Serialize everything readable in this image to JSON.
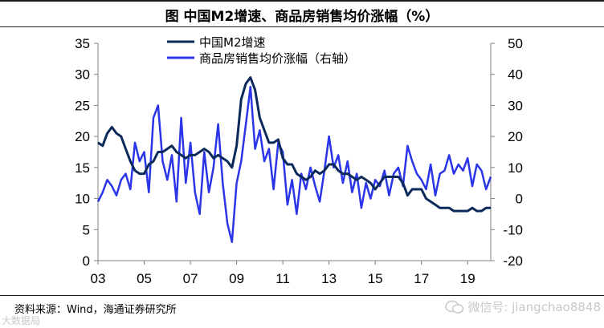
{
  "figure_title": "图  中国M2增速、商品房销售均价涨幅（%）",
  "source_note": "资料来源：Wind，海通证券研究所",
  "watermark_left": "大数据局",
  "watermark_right": "微信号: jiangchao8848",
  "colors": {
    "m2": "#0b2a5b",
    "house": "#2a34e8",
    "axis": "#808080",
    "text": "#000000"
  },
  "chart_data": {
    "type": "line",
    "x_tick_labels": [
      "03",
      "05",
      "07",
      "09",
      "11",
      "13",
      "15",
      "17",
      "19"
    ],
    "x_tick_years": [
      2003,
      2005,
      2007,
      2009,
      2011,
      2013,
      2015,
      2017,
      2019
    ],
    "xlim": [
      2003,
      2020
    ],
    "left_axis": {
      "ticks": [
        0,
        5,
        10,
        15,
        20,
        25,
        30,
        35
      ],
      "ylim": [
        0,
        35
      ]
    },
    "right_axis": {
      "ticks": [
        -20,
        -10,
        0,
        10,
        20,
        30,
        40,
        50
      ],
      "ylim": [
        -20,
        50
      ]
    },
    "legend_position": "top-center",
    "series": [
      {
        "name": "中国M2增速",
        "axis": "left",
        "x": [
          2003.0,
          2003.2,
          2003.4,
          2003.6,
          2003.8,
          2004.0,
          2004.2,
          2004.4,
          2004.6,
          2004.8,
          2005.0,
          2005.2,
          2005.4,
          2005.6,
          2005.8,
          2006.0,
          2006.2,
          2006.4,
          2006.6,
          2006.8,
          2007.0,
          2007.2,
          2007.4,
          2007.6,
          2007.8,
          2008.0,
          2008.2,
          2008.4,
          2008.6,
          2008.8,
          2009.0,
          2009.2,
          2009.4,
          2009.6,
          2009.8,
          2010.0,
          2010.2,
          2010.4,
          2010.6,
          2010.8,
          2011.0,
          2011.2,
          2011.4,
          2011.6,
          2011.8,
          2012.0,
          2012.2,
          2012.4,
          2012.6,
          2012.8,
          2013.0,
          2013.2,
          2013.4,
          2013.6,
          2013.8,
          2014.0,
          2014.2,
          2014.4,
          2014.6,
          2014.8,
          2015.0,
          2015.2,
          2015.4,
          2015.6,
          2015.8,
          2016.0,
          2016.2,
          2016.4,
          2016.6,
          2016.8,
          2017.0,
          2017.2,
          2017.4,
          2017.6,
          2017.8,
          2018.0,
          2018.2,
          2018.4,
          2018.6,
          2018.8,
          2019.0,
          2019.2,
          2019.4,
          2019.6,
          2019.8,
          2020.0
        ],
        "y": [
          19.0,
          18.5,
          20.5,
          21.5,
          20.5,
          20.0,
          18.0,
          16.0,
          14.5,
          14.0,
          14.0,
          15.5,
          16.0,
          17.5,
          17.5,
          18.0,
          18.5,
          17.5,
          17.0,
          16.5,
          17.0,
          17.0,
          17.5,
          18.0,
          17.5,
          16.5,
          17.0,
          16.5,
          16.0,
          15.0,
          18.5,
          26.0,
          28.5,
          29.5,
          27.5,
          23.0,
          21.0,
          19.0,
          19.0,
          19.5,
          16.5,
          15.5,
          15.5,
          14.0,
          13.5,
          13.0,
          13.5,
          14.5,
          14.0,
          14.5,
          15.5,
          15.5,
          14.5,
          14.0,
          14.0,
          13.5,
          13.0,
          13.5,
          13.0,
          12.5,
          11.5,
          12.5,
          13.5,
          13.5,
          13.5,
          13.5,
          12.5,
          10.5,
          11.5,
          11.5,
          11.5,
          10.0,
          9.5,
          9.0,
          8.5,
          8.5,
          8.5,
          8.0,
          8.0,
          8.0,
          8.0,
          8.5,
          8.0,
          8.0,
          8.5,
          8.5
        ]
      },
      {
        "name": "商品房销售均价涨幅（右轴）",
        "axis": "right",
        "x": [
          2003.0,
          2003.2,
          2003.4,
          2003.6,
          2003.8,
          2004.0,
          2004.2,
          2004.4,
          2004.6,
          2004.8,
          2005.0,
          2005.2,
          2005.4,
          2005.6,
          2005.8,
          2006.0,
          2006.2,
          2006.4,
          2006.6,
          2006.8,
          2007.0,
          2007.2,
          2007.4,
          2007.6,
          2007.8,
          2008.0,
          2008.2,
          2008.4,
          2008.6,
          2008.8,
          2009.0,
          2009.2,
          2009.4,
          2009.6,
          2009.8,
          2010.0,
          2010.2,
          2010.4,
          2010.6,
          2010.8,
          2011.0,
          2011.2,
          2011.4,
          2011.6,
          2011.8,
          2012.0,
          2012.2,
          2012.4,
          2012.6,
          2012.8,
          2013.0,
          2013.2,
          2013.4,
          2013.6,
          2013.8,
          2014.0,
          2014.2,
          2014.4,
          2014.6,
          2014.8,
          2015.0,
          2015.2,
          2015.4,
          2015.6,
          2015.8,
          2016.0,
          2016.2,
          2016.4,
          2016.6,
          2016.8,
          2017.0,
          2017.2,
          2017.4,
          2017.6,
          2017.8,
          2018.0,
          2018.2,
          2018.4,
          2018.6,
          2018.8,
          2019.0,
          2019.2,
          2019.4,
          2019.6,
          2019.8,
          2020.0
        ],
        "y": [
          -1.0,
          2.0,
          6.0,
          4.0,
          1.0,
          6.0,
          8.0,
          3.0,
          18.0,
          12.0,
          15.0,
          2.0,
          26.0,
          30.0,
          12.0,
          6.0,
          14.0,
          -1.0,
          26.0,
          5.0,
          18.0,
          2.0,
          -5.0,
          15.0,
          2.0,
          10.0,
          24.0,
          5.0,
          -8.0,
          -14.0,
          5.0,
          12.0,
          24.0,
          36.0,
          16.0,
          22.0,
          12.0,
          16.0,
          3.0,
          18.0,
          15.0,
          -2.0,
          6.0,
          -5.0,
          8.0,
          3.0,
          10.0,
          4.0,
          -1.0,
          9.0,
          20.0,
          10.0,
          14.0,
          5.0,
          12.0,
          2.0,
          8.0,
          -3.0,
          5.0,
          0.0,
          6.0,
          4.0,
          9.0,
          1.0,
          8.0,
          10.0,
          4.0,
          17.0,
          12.0,
          8.0,
          6.0,
          3.0,
          11.0,
          1.0,
          8.0,
          9.0,
          14.0,
          8.0,
          11.0,
          9.0,
          13.0,
          4.0,
          11.0,
          9.0,
          3.0,
          7.0
        ]
      }
    ]
  }
}
